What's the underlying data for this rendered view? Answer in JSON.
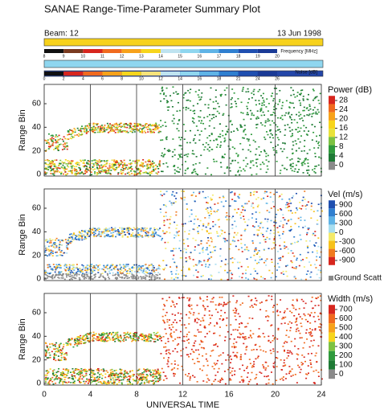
{
  "title": "SANAE Range-Time-Parameter Summary Plot",
  "beam": "Beam: 12",
  "date": "13 Jun 1998",
  "frequency": {
    "label": "Frequency [MHz]",
    "ticks": [
      8,
      9,
      10,
      11,
      12,
      13,
      14,
      15,
      16,
      17,
      18,
      19,
      20
    ]
  },
  "noise": {
    "label": "Noise [dB]",
    "ticks": [
      0,
      2,
      4,
      6,
      8,
      10,
      12,
      14,
      16,
      18,
      21,
      24,
      26
    ]
  },
  "chart_data": [
    {
      "type": "scatter",
      "ylabel": "Range Bin",
      "xlim": [
        0,
        24
      ],
      "xticks": [
        0,
        4,
        8,
        12,
        16,
        20,
        24
      ],
      "ylim": [
        0,
        75
      ],
      "yticks": [
        0,
        20,
        40,
        60
      ],
      "colorbar": {
        "title": "Power (dB)",
        "ticks": [
          28,
          24,
          20,
          16,
          12,
          8,
          4,
          0
        ],
        "colors": [
          "#d7261e",
          "#f06a1f",
          "#f7a21b",
          "#f7d51c",
          "#e8e23a",
          "#7cc242",
          "#2f9a3c",
          "#1e7a35",
          "#8a8a8a"
        ]
      }
    },
    {
      "type": "scatter",
      "ylabel": "Range Bin",
      "xlim": [
        0,
        24
      ],
      "xticks": [
        0,
        4,
        8,
        12,
        16,
        20,
        24
      ],
      "ylim": [
        0,
        75
      ],
      "yticks": [
        0,
        20,
        40,
        60
      ],
      "colorbar": {
        "title": "Vel (m/s)",
        "ticks": [
          900,
          600,
          300,
          0,
          -300,
          -600,
          -900
        ],
        "colors": [
          "#1f4fb0",
          "#2f7fd0",
          "#5fb3e6",
          "#a8def0",
          "#f4ea6a",
          "#f7c21b",
          "#f07a1f",
          "#d7261e"
        ]
      },
      "ground_scatter": "Ground Scatt"
    },
    {
      "type": "scatter",
      "ylabel": "Range Bin",
      "xlabel": "UNIVERSAL TIME",
      "xlim": [
        0,
        24
      ],
      "xticks": [
        0,
        4,
        8,
        12,
        16,
        20,
        24
      ],
      "ylim": [
        0,
        75
      ],
      "yticks": [
        0,
        20,
        40,
        60
      ],
      "colorbar": {
        "title": "Width (m/s)",
        "ticks": [
          700,
          600,
          500,
          400,
          300,
          200,
          100,
          0
        ],
        "colors": [
          "#d7261e",
          "#f06a1f",
          "#f7a21b",
          "#f7d51c",
          "#7cc242",
          "#2f9a3c",
          "#1e7a35",
          "#8a8a8a"
        ]
      }
    }
  ]
}
